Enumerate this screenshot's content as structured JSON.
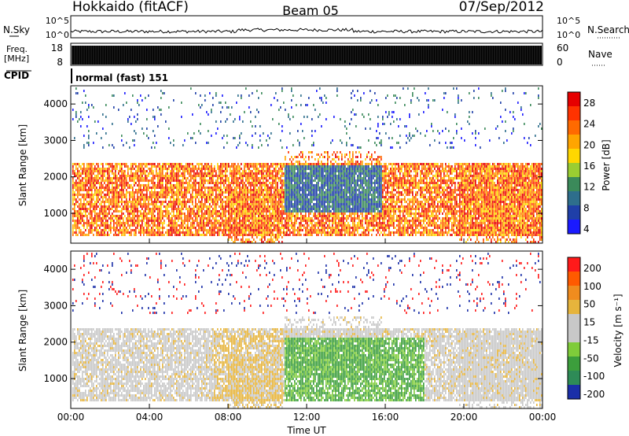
{
  "header": {
    "radar": "Hokkaido (fitACF)",
    "beam": "Beam 05",
    "date": "07/Sep/2012"
  },
  "top_panels": {
    "nsky_label": "N.Sky",
    "nsky_ticks": [
      "10^5",
      "10^0"
    ],
    "nsearch_label": "N.Search",
    "nsearch_ticks": [
      "10^5",
      "10^0"
    ],
    "freq_label": "Freq.",
    "freq_unit": "[MHz]",
    "freq_ticks": [
      "18",
      "8"
    ],
    "nave_label": "Nave",
    "nave_ticks": [
      "60",
      "0"
    ],
    "cpid_label": "CPID",
    "cpid_value": "normal (fast) 151"
  },
  "colors": {
    "power_scale": [
      "#1a1aff",
      "#1f3fa8",
      "#2e6e8c",
      "#3b8a5a",
      "#9acd32",
      "#ffd700",
      "#ffa500",
      "#ff6a00",
      "#ff3300",
      "#e60000"
    ],
    "velocity_scale": [
      "#1a2fa8",
      "#2e8b57",
      "#3c9e3c",
      "#7fcc3a",
      "#c8c8c8",
      "#c8c8c8",
      "#e6b43c",
      "#f08c1e",
      "#ff5a00",
      "#ff1a1a"
    ]
  },
  "chart_data": [
    {
      "type": "heatmap",
      "panel": "power",
      "ylabel": "Slant Range [km]",
      "ylim": [
        180,
        4500
      ],
      "yticks": [
        "1000",
        "2000",
        "3000",
        "4000"
      ],
      "xlim_hours": [
        0,
        24
      ],
      "xticks": [
        "00:00",
        "04:00",
        "08:00",
        "12:00",
        "16:00",
        "20:00",
        "00:00"
      ],
      "xlabel": "Time UT",
      "colorbar": {
        "label": "Power [dB]",
        "ticks": [
          "28",
          "24",
          "20",
          "16",
          "12",
          "8",
          "4"
        ],
        "range": [
          0,
          30
        ]
      }
    },
    {
      "type": "heatmap",
      "panel": "velocity",
      "ylabel": "Slant Range [km]",
      "ylim": [
        180,
        4500
      ],
      "yticks": [
        "1000",
        "2000",
        "3000",
        "4000"
      ],
      "xlim_hours": [
        0,
        24
      ],
      "xticks": [
        "00:00",
        "04:00",
        "08:00",
        "12:00",
        "16:00",
        "20:00",
        "00:00"
      ],
      "xlabel": "Time UT",
      "colorbar": {
        "label": "Velocity [m s⁻¹]",
        "ticks": [
          "200",
          "100",
          "50",
          "15",
          "-15",
          "-50",
          "-100",
          "-200"
        ],
        "range": [
          -250,
          250
        ]
      }
    }
  ]
}
